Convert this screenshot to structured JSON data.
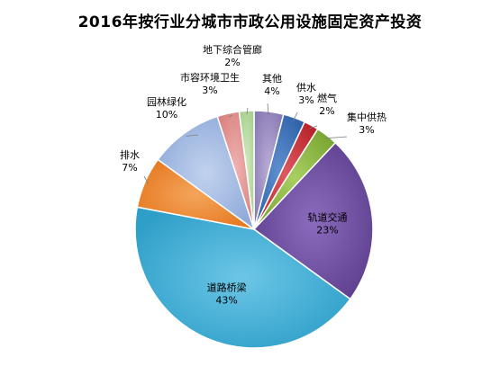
{
  "chart_data": {
    "type": "pie",
    "title": "2016年按行业分城市市政公用设施固定资产投资",
    "unit": "%",
    "slices": [
      {
        "name": "其他",
        "value": 4,
        "label": "4%",
        "color": "#8B7BB5",
        "gradient_light": "#b9add5"
      },
      {
        "name": "供水",
        "value": 3,
        "label": "3%",
        "color": "#2E62A8",
        "gradient_light": "#5f8fd0"
      },
      {
        "name": "燃气",
        "value": 2,
        "label": "2%",
        "color": "#B8232A",
        "gradient_light": "#de5a60"
      },
      {
        "name": "集中供热",
        "value": 3,
        "label": "3%",
        "color": "#79A531",
        "gradient_light": "#a9cf63"
      },
      {
        "name": "轨道交通",
        "value": 23,
        "label": "23%",
        "color": "#5E3F8E",
        "gradient_light": "#8a6bbd"
      },
      {
        "name": "道路桥梁",
        "value": 43,
        "label": "43%",
        "color": "#2E9FC9",
        "gradient_light": "#6cc6e6"
      },
      {
        "name": "排水",
        "value": 7,
        "label": "7%",
        "color": "#E5781F",
        "gradient_light": "#f5a55c"
      },
      {
        "name": "园林绿化",
        "value": 10,
        "label": "10%",
        "color": "#8FAAD9",
        "gradient_light": "#c1d2ee"
      },
      {
        "name": "市容环境卫生",
        "value": 3,
        "label": "3%",
        "color": "#D9827F",
        "gradient_light": "#efb3b0"
      },
      {
        "name": "地下综合管廊",
        "value": 2,
        "label": "2%",
        "color": "#A8CF8E",
        "gradient_light": "#d3ebc2"
      }
    ],
    "start_angle_deg": 0,
    "direction": "clockwise",
    "legend": "none",
    "data_labels": "category name and percentage"
  }
}
